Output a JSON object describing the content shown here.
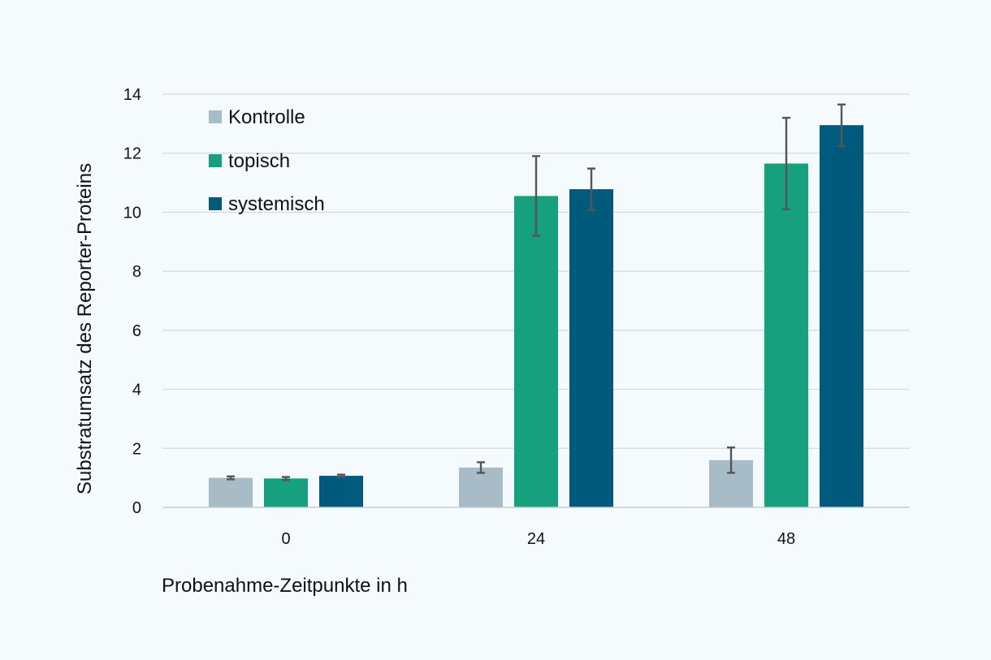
{
  "chart_data": {
    "type": "bar",
    "title": "",
    "xlabel": "Probenahme-Zeitpunkte in h",
    "ylabel": "Substratumsatz des Reporter-Proteins",
    "categories": [
      "0",
      "24",
      "48"
    ],
    "ylim": [
      0,
      14
    ],
    "yticks": [
      0,
      2,
      4,
      6,
      8,
      10,
      12,
      14
    ],
    "grid": true,
    "legend_position": "top-left",
    "series": [
      {
        "name": "Kontrolle",
        "color": "#a8bcc8",
        "values": [
          1.0,
          1.35,
          1.6
        ],
        "errors": [
          0.05,
          0.18,
          0.43
        ]
      },
      {
        "name": "topisch",
        "color": "#17a07e",
        "values": [
          0.98,
          10.55,
          11.65
        ],
        "errors": [
          0.05,
          1.35,
          1.55
        ]
      },
      {
        "name": "systemisch",
        "color": "#005a7b",
        "values": [
          1.07,
          10.78,
          12.95
        ],
        "errors": [
          0.04,
          0.7,
          0.7
        ]
      }
    ]
  }
}
